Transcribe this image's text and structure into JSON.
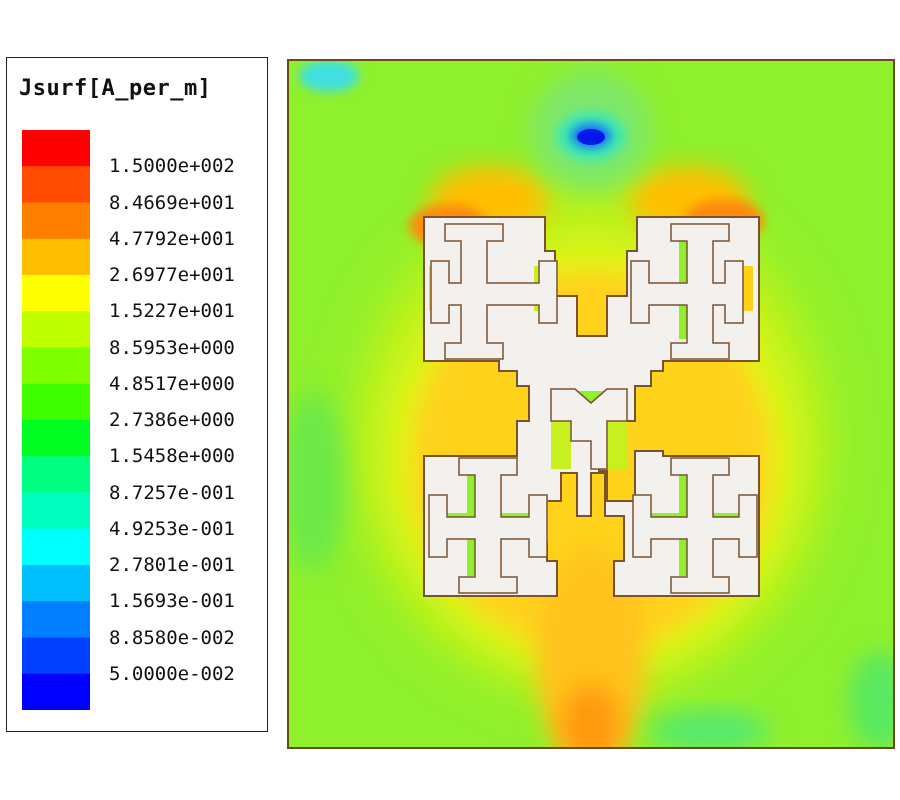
{
  "legend": {
    "title": "Jsurf[A_per_m]",
    "colors": [
      "#ff0000",
      "#ff4c00",
      "#ff8000",
      "#ffbf00",
      "#ffff00",
      "#bfff00",
      "#80ff00",
      "#40ff00",
      "#00ff20",
      "#00ff80",
      "#00ffbf",
      "#00ffff",
      "#00bfff",
      "#0080ff",
      "#0040ff",
      "#0000ff"
    ],
    "labels": [
      "1.5000e+002",
      "8.4669e+001",
      "4.7792e+001",
      "2.6977e+001",
      "1.5227e+001",
      "8.5953e+000",
      "4.8517e+000",
      "2.7386e+000",
      "1.5458e+000",
      "8.7257e-001",
      "4.9253e-001",
      "2.7801e-001",
      "1.5693e-001",
      "8.8580e-002",
      "5.0000e-002"
    ]
  },
  "plot": {
    "background_color": "#8ff02c",
    "antenna_color": "#f2f1ee",
    "outline_color": "#7a5230"
  }
}
